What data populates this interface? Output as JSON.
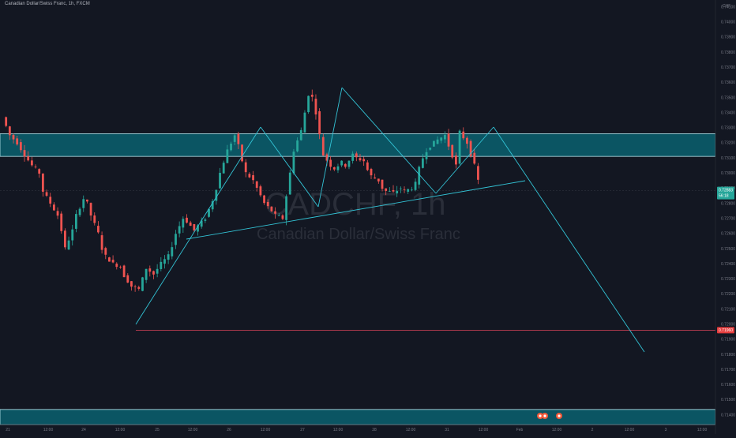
{
  "symbol_title": "Canadian Dollar/Swiss Franc, 1h, FXCM",
  "watermark": {
    "symbol": "CADCHF, 1h",
    "name": "Canadian Dollar/Swiss Franc"
  },
  "currency_label": "CHF",
  "colors": {
    "background": "#131722",
    "up_candle": "#26a69a",
    "down_candle": "#ef5350",
    "zone_fill": "#0b5563",
    "zone_border": "#b8e6ee",
    "drawing_line": "#33c4d6",
    "support_line": "#e0455a",
    "axis_text": "#787b86",
    "last_price_bg": "#26a69a",
    "support_price_bg": "#e53d3d"
  },
  "chart_data": {
    "type": "candlestick",
    "title": "",
    "ylim": [
      0.71335,
      0.74145
    ],
    "y_ticks": [
      "0.74100",
      "0.74000",
      "0.73900",
      "0.73800",
      "0.73700",
      "0.73600",
      "0.73500",
      "0.73400",
      "0.73300",
      "0.73200",
      "0.73100",
      "0.73000",
      "0.72900",
      "0.72800",
      "0.72700",
      "0.72600",
      "0.72500",
      "0.72400",
      "0.72300",
      "0.72200",
      "0.72100",
      "0.72000",
      "0.71900",
      "0.71800",
      "0.71700",
      "0.71600",
      "0.71500",
      "0.71400"
    ],
    "x_ticks": [
      "21",
      "12:00",
      "24",
      "12:00",
      "25",
      "12:00",
      "26",
      "12:00",
      "27",
      "12:00",
      "28",
      "12:00",
      "31",
      "12:00",
      "Feb",
      "12:00",
      "2",
      "12:00",
      "3",
      "12:00"
    ],
    "last_price_label": {
      "price": "0.72883",
      "countdown": "56:18",
      "value": 0.72883
    },
    "support_label": {
      "price": "0.71960",
      "value": 0.7196
    },
    "resistance_zone": [
      0.7311,
      0.7326
    ],
    "bottom_zone": [
      0.71335,
      0.71435
    ],
    "series": [
      {
        "type": "candles_path",
        "points": [
          [
            0,
            0.7337
          ],
          [
            2,
            0.7325
          ],
          [
            4,
            0.732
          ],
          [
            6,
            0.7312
          ],
          [
            8,
            0.7305
          ],
          [
            10,
            0.73
          ],
          [
            11,
            0.7288
          ],
          [
            13,
            0.728
          ],
          [
            15,
            0.7272
          ],
          [
            16,
            0.7262
          ],
          [
            17,
            0.725
          ],
          [
            19,
            0.7262
          ],
          [
            20,
            0.7272
          ],
          [
            22,
            0.7283
          ],
          [
            23,
            0.728
          ],
          [
            24,
            0.7272
          ],
          [
            26,
            0.726
          ],
          [
            27,
            0.725
          ],
          [
            28,
            0.7245
          ],
          [
            30,
            0.724
          ],
          [
            32,
            0.7238
          ],
          [
            33,
            0.7232
          ],
          [
            35,
            0.7225
          ],
          [
            37,
            0.7223
          ],
          [
            38,
            0.723
          ],
          [
            39,
            0.7237
          ],
          [
            41,
            0.7233
          ],
          [
            43,
            0.724
          ],
          [
            45,
            0.7245
          ],
          [
            46,
            0.7252
          ],
          [
            47,
            0.726
          ],
          [
            49,
            0.727
          ],
          [
            50,
            0.7268
          ],
          [
            52,
            0.7262
          ],
          [
            53,
            0.7265
          ],
          [
            55,
            0.727
          ],
          [
            57,
            0.7282
          ],
          [
            58,
            0.729
          ],
          [
            59,
            0.73
          ],
          [
            61,
            0.7315
          ],
          [
            63,
            0.7325
          ],
          [
            64,
            0.7318
          ],
          [
            65,
            0.7308
          ],
          [
            66,
            0.73
          ],
          [
            68,
            0.7295
          ],
          [
            69,
            0.729
          ],
          [
            70,
            0.7285
          ],
          [
            71,
            0.728
          ],
          [
            73,
            0.7275
          ],
          [
            74,
            0.7272
          ],
          [
            76,
            0.727
          ],
          [
            77,
            0.7285
          ],
          [
            78,
            0.73
          ],
          [
            79,
            0.7315
          ],
          [
            81,
            0.7328
          ],
          [
            82,
            0.734
          ],
          [
            83,
            0.7352
          ],
          [
            84,
            0.735
          ],
          [
            85,
            0.734
          ],
          [
            86,
            0.7325
          ],
          [
            87,
            0.7312
          ],
          [
            89,
            0.7305
          ],
          [
            90,
            0.7303
          ],
          [
            92,
            0.7307
          ],
          [
            93,
            0.7305
          ],
          [
            95,
            0.7312
          ],
          [
            96,
            0.731
          ],
          [
            98,
            0.7308
          ],
          [
            99,
            0.7302
          ],
          [
            100,
            0.7298
          ],
          [
            102,
            0.7295
          ],
          [
            103,
            0.729
          ],
          [
            104,
            0.7288
          ],
          [
            106,
            0.7287
          ],
          [
            108,
            0.729
          ],
          [
            109,
            0.7288
          ],
          [
            111,
            0.729
          ],
          [
            112,
            0.7293
          ],
          [
            113,
            0.7303
          ],
          [
            114,
            0.731
          ],
          [
            115,
            0.7315
          ],
          [
            116,
            0.7318
          ],
          [
            118,
            0.7322
          ],
          [
            120,
            0.7325
          ],
          [
            121,
            0.7318
          ],
          [
            123,
            0.7305
          ],
          [
            124,
            0.7327
          ],
          [
            126,
            0.732
          ],
          [
            128,
            0.7305
          ],
          [
            129,
            0.7295
          ]
        ]
      }
    ]
  }
}
